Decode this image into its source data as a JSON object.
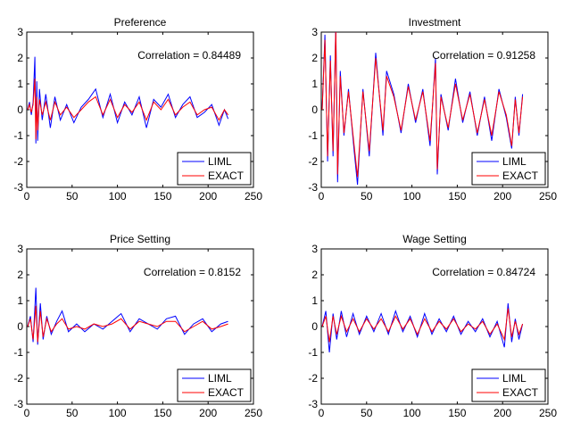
{
  "chart_data": [
    {
      "type": "line",
      "title": "Preference",
      "annotation": "Correlation = 0.84489",
      "xlim": [
        0,
        250
      ],
      "ylim": [
        -3,
        3
      ],
      "xticks": [
        "0",
        "50",
        "100",
        "150",
        "200",
        "250"
      ],
      "yticks": [
        "-3",
        "-2",
        "-1",
        "0",
        "1",
        "2",
        "3"
      ],
      "legend_position": "bottom-right",
      "x": [
        1,
        3,
        5,
        7,
        9,
        10,
        11,
        12,
        14,
        17,
        21,
        26,
        31,
        37,
        44,
        52,
        60,
        68,
        76,
        84,
        92,
        100,
        108,
        116,
        124,
        132,
        140,
        148,
        156,
        164,
        172,
        180,
        188,
        196,
        204,
        212,
        218,
        222
      ],
      "series": [
        {
          "name": "LIML",
          "color": "#0000ff",
          "values": [
            0.0,
            0.3,
            -0.2,
            0.3,
            2.05,
            -1.3,
            1.1,
            -1.2,
            0.8,
            -0.4,
            0.6,
            -0.7,
            0.5,
            -0.4,
            0.2,
            -0.5,
            0.1,
            0.4,
            0.8,
            -0.3,
            0.6,
            -0.5,
            0.3,
            -0.2,
            0.5,
            -0.7,
            0.4,
            0.1,
            0.6,
            -0.3,
            0.2,
            0.5,
            -0.3,
            -0.1,
            0.2,
            -0.6,
            0.0,
            -0.35
          ]
        },
        {
          "name": "EXACT",
          "color": "#ff0000",
          "values": [
            0.0,
            0.2,
            -0.1,
            0.2,
            1.2,
            -1.15,
            0.5,
            -0.8,
            0.4,
            -0.2,
            0.3,
            -0.4,
            0.3,
            -0.2,
            0.1,
            -0.3,
            0.0,
            0.3,
            0.5,
            -0.2,
            0.4,
            -0.3,
            0.2,
            -0.1,
            0.3,
            -0.4,
            0.3,
            0.0,
            0.4,
            -0.2,
            0.1,
            0.3,
            -0.2,
            0.0,
            0.1,
            -0.4,
            0.0,
            -0.2
          ]
        }
      ]
    },
    {
      "type": "line",
      "title": "Investment",
      "annotation": "Correlation = 0.91258",
      "xlim": [
        0,
        250
      ],
      "ylim": [
        -3,
        3
      ],
      "xticks": [
        "0",
        "50",
        "100",
        "150",
        "200",
        "250"
      ],
      "yticks": [
        "-3",
        "-2",
        "-1",
        "0",
        "1",
        "2",
        "3"
      ],
      "legend_position": "bottom-right",
      "x": [
        1,
        4,
        7,
        10,
        13,
        16,
        18,
        21,
        25,
        30,
        36,
        40,
        46,
        53,
        60,
        68,
        72,
        80,
        88,
        96,
        104,
        112,
        120,
        126,
        128,
        132,
        140,
        148,
        156,
        164,
        172,
        180,
        188,
        196,
        204,
        210,
        214,
        218,
        222
      ],
      "series": [
        {
          "name": "LIML",
          "color": "#0000ff",
          "values": [
            0.0,
            2.9,
            -2.0,
            2.1,
            -1.8,
            3.3,
            -2.8,
            1.5,
            -1.0,
            0.8,
            -1.5,
            -2.9,
            0.8,
            -1.8,
            2.2,
            -1.0,
            1.5,
            0.6,
            -0.9,
            1.0,
            -0.5,
            0.8,
            -1.4,
            2.0,
            -2.5,
            0.6,
            -0.8,
            1.2,
            -0.5,
            0.7,
            -1.0,
            0.5,
            -1.2,
            0.8,
            -0.3,
            -1.5,
            0.5,
            -1.0,
            0.6
          ]
        },
        {
          "name": "EXACT",
          "color": "#ff0000",
          "values": [
            0.0,
            2.7,
            -1.8,
            1.9,
            -1.6,
            3.1,
            -2.5,
            1.3,
            -0.9,
            0.7,
            -1.3,
            -2.6,
            0.7,
            -1.6,
            2.0,
            -0.8,
            1.3,
            0.5,
            -0.8,
            0.9,
            -0.4,
            0.7,
            -1.2,
            1.8,
            -2.3,
            0.5,
            -0.7,
            1.0,
            -0.4,
            0.6,
            -0.9,
            0.4,
            -1.0,
            0.7,
            -0.2,
            -1.4,
            0.4,
            -0.9,
            0.5
          ]
        }
      ]
    },
    {
      "type": "line",
      "title": "Price Setting",
      "annotation": "Correlation = 0.8152",
      "xlim": [
        0,
        250
      ],
      "ylim": [
        -3,
        3
      ],
      "xticks": [
        "0",
        "50",
        "100",
        "150",
        "200",
        "250"
      ],
      "yticks": [
        "-3",
        "-2",
        "-1",
        "0",
        "1",
        "2",
        "3"
      ],
      "legend_position": "bottom-right",
      "x": [
        1,
        4,
        7,
        10,
        12,
        15,
        18,
        22,
        27,
        33,
        39,
        46,
        55,
        64,
        74,
        84,
        94,
        104,
        114,
        124,
        134,
        144,
        154,
        164,
        174,
        184,
        194,
        204,
        214,
        222
      ],
      "series": [
        {
          "name": "LIML",
          "color": "#0000ff",
          "values": [
            0.0,
            0.4,
            -0.6,
            1.5,
            -0.7,
            0.9,
            -0.5,
            0.4,
            -0.3,
            0.2,
            0.6,
            -0.2,
            0.1,
            -0.2,
            0.1,
            -0.1,
            0.2,
            0.5,
            -0.2,
            0.3,
            0.1,
            -0.1,
            0.3,
            0.4,
            -0.3,
            0.1,
            0.3,
            -0.2,
            0.1,
            0.2
          ]
        },
        {
          "name": "EXACT",
          "color": "#ff0000",
          "values": [
            0.0,
            0.3,
            -0.5,
            0.8,
            -0.6,
            0.6,
            -0.4,
            0.3,
            -0.2,
            0.1,
            0.3,
            -0.1,
            0.0,
            -0.1,
            0.1,
            0.0,
            0.1,
            0.3,
            -0.1,
            0.2,
            0.1,
            0.0,
            0.2,
            0.2,
            -0.2,
            0.0,
            0.2,
            -0.1,
            0.0,
            0.1
          ]
        }
      ]
    },
    {
      "type": "line",
      "title": "Wage Setting",
      "annotation": "Correlation = 0.84724",
      "xlim": [
        0,
        250
      ],
      "ylim": [
        -3,
        3
      ],
      "xticks": [
        "0",
        "50",
        "100",
        "150",
        "200",
        "250"
      ],
      "yticks": [
        "-3",
        "-2",
        "-1",
        "0",
        "1",
        "2",
        "3"
      ],
      "legend_position": "bottom-right",
      "x": [
        1,
        5,
        9,
        13,
        17,
        22,
        28,
        35,
        42,
        50,
        58,
        66,
        74,
        82,
        90,
        98,
        106,
        114,
        122,
        130,
        138,
        146,
        154,
        162,
        170,
        178,
        186,
        194,
        202,
        206,
        210,
        214,
        218,
        222
      ],
      "series": [
        {
          "name": "LIML",
          "color": "#0000ff",
          "values": [
            0.0,
            0.6,
            -1.0,
            0.5,
            -0.5,
            0.6,
            -0.4,
            0.5,
            -0.3,
            0.4,
            -0.2,
            0.5,
            -0.3,
            0.6,
            -0.2,
            0.4,
            -0.4,
            0.5,
            -0.3,
            0.3,
            -0.2,
            0.4,
            -0.3,
            0.2,
            -0.2,
            0.3,
            -0.4,
            0.2,
            -0.8,
            0.9,
            -0.6,
            0.3,
            -0.5,
            0.1
          ]
        },
        {
          "name": "EXACT",
          "color": "#ff0000",
          "values": [
            0.0,
            0.4,
            -0.6,
            0.4,
            -0.3,
            0.4,
            -0.2,
            0.3,
            -0.2,
            0.3,
            -0.1,
            0.3,
            -0.2,
            0.4,
            -0.1,
            0.3,
            -0.3,
            0.3,
            -0.2,
            0.2,
            -0.1,
            0.3,
            -0.2,
            0.1,
            -0.1,
            0.2,
            -0.3,
            0.1,
            -0.5,
            0.7,
            -0.4,
            0.2,
            -0.3,
            0.1
          ]
        }
      ]
    }
  ]
}
